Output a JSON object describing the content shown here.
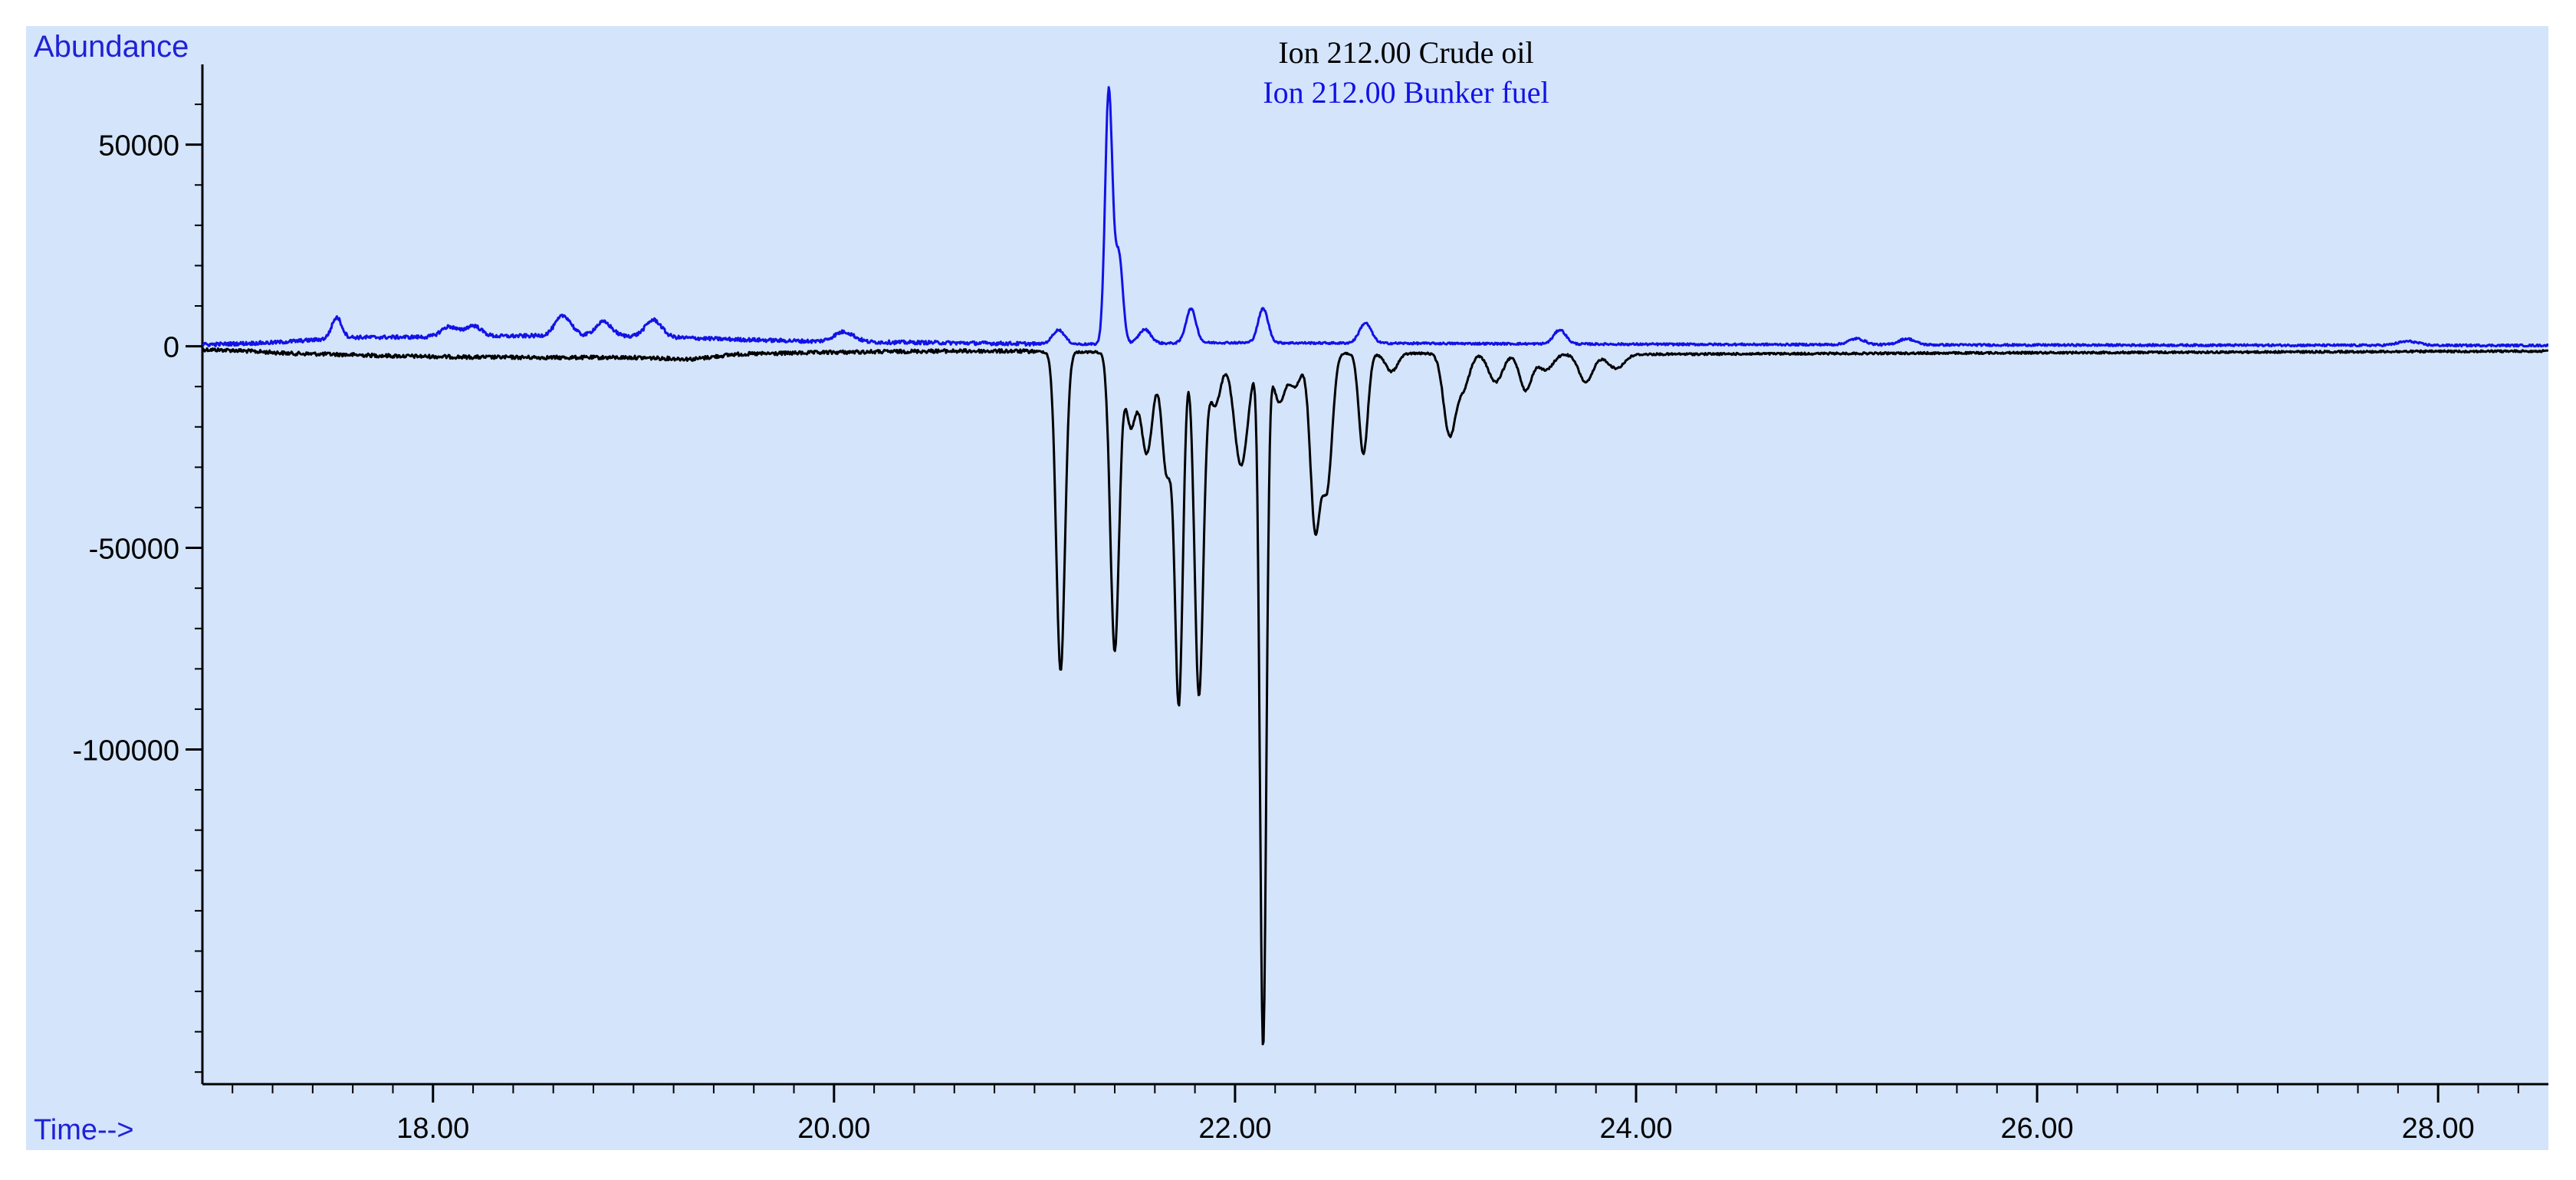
{
  "colors": {
    "background": "#d3e4fb",
    "axis": "#000000",
    "label_blue": "#1f22d6",
    "crude_line": "#000000",
    "bunker_line": "#1212e6"
  },
  "chart_data": {
    "type": "line",
    "title": "",
    "legend": [
      "Ion 212.00 Crude oil",
      "Ion 212.00 Bunker fuel"
    ],
    "legend_placement": "top-center",
    "ylabel": "Abundance",
    "xlabel": "Time-->",
    "xlim": [
      16.85,
      28.55
    ],
    "ylim": [
      -183000,
      68000
    ],
    "grid": false,
    "x_ticks": [
      18.0,
      20.0,
      22.0,
      24.0,
      26.0,
      28.0
    ],
    "x_tick_labels": [
      "18.00",
      "20.00",
      "22.00",
      "24.00",
      "26.00",
      "28.00"
    ],
    "y_ticks": [
      50000,
      0,
      -50000,
      -100000
    ],
    "y_tick_labels": [
      "50000",
      "0",
      "-50000",
      "-100000"
    ],
    "series": [
      {
        "name": "Ion 212.00 Crude oil",
        "baseline": -2000,
        "values": [
          [
            16.85,
            -800
          ],
          [
            17.0,
            -1000
          ],
          [
            17.3,
            -1800
          ],
          [
            17.5,
            -2000
          ],
          [
            17.8,
            -2400
          ],
          [
            18.2,
            -2700
          ],
          [
            18.6,
            -2800
          ],
          [
            19.0,
            -2800
          ],
          [
            19.3,
            -3200
          ],
          [
            19.5,
            -2000
          ],
          [
            20.0,
            -1500
          ],
          [
            20.5,
            -1200
          ],
          [
            20.9,
            -1200
          ],
          [
            21.1,
            -1400
          ]
        ],
        "peaks": [
          [
            21.13,
            -79000,
            0.022
          ],
          [
            21.4,
            -74000,
            0.022
          ],
          [
            21.48,
            -18000,
            0.025
          ],
          [
            21.56,
            -25000,
            0.03
          ],
          [
            21.66,
            -30000,
            0.025
          ],
          [
            21.72,
            -86000,
            0.02
          ],
          [
            21.82,
            -85000,
            0.022
          ],
          [
            21.9,
            -13000,
            0.03
          ],
          [
            22.03,
            -28000,
            0.035
          ],
          [
            22.14,
            -172000,
            0.016
          ],
          [
            22.22,
            -12000,
            0.03
          ],
          [
            22.3,
            -8000,
            0.03
          ],
          [
            22.4,
            -43000,
            0.025
          ],
          [
            22.46,
            -32000,
            0.025
          ],
          [
            22.64,
            -25000,
            0.022
          ],
          [
            22.78,
            -4500,
            0.03
          ],
          [
            23.07,
            -20000,
            0.03
          ],
          [
            23.14,
            -8000,
            0.03
          ],
          [
            23.3,
            -7000,
            0.035
          ],
          [
            23.45,
            -9000,
            0.03
          ],
          [
            23.55,
            -4000,
            0.035
          ],
          [
            23.75,
            -7000,
            0.035
          ],
          [
            23.9,
            -3500,
            0.04
          ]
        ],
        "tail": [
          [
            24.0,
            -2000
          ],
          [
            26.0,
            -1600
          ],
          [
            28.55,
            -1200
          ]
        ]
      },
      {
        "name": "Ion 212.00 Bunker fuel",
        "baseline": 1500,
        "values": [
          [
            16.85,
            400
          ],
          [
            17.2,
            900
          ],
          [
            17.6,
            2200
          ],
          [
            18.0,
            2300
          ],
          [
            18.5,
            2600
          ],
          [
            19.0,
            2500
          ],
          [
            19.5,
            1700
          ],
          [
            20.0,
            1100
          ],
          [
            20.5,
            900
          ],
          [
            21.0,
            600
          ],
          [
            21.3,
            500
          ]
        ],
        "peaks": [
          [
            17.52,
            5200,
            0.025
          ],
          [
            18.08,
            2500,
            0.04
          ],
          [
            18.2,
            2700,
            0.04
          ],
          [
            18.65,
            5000,
            0.04
          ],
          [
            18.85,
            3500,
            0.04
          ],
          [
            19.1,
            4200,
            0.04
          ],
          [
            20.05,
            2500,
            0.05
          ],
          [
            21.12,
            3500,
            0.03
          ],
          [
            21.37,
            62500,
            0.018
          ],
          [
            21.42,
            22000,
            0.02
          ],
          [
            21.55,
            3500,
            0.03
          ],
          [
            21.78,
            8500,
            0.025
          ],
          [
            22.14,
            8500,
            0.025
          ],
          [
            22.65,
            5000,
            0.03
          ],
          [
            23.62,
            3500,
            0.03
          ],
          [
            25.1,
            1500,
            0.04
          ],
          [
            25.35,
            1500,
            0.04
          ],
          [
            27.85,
            1000,
            0.05
          ]
        ],
        "tail": [
          [
            21.9,
            900
          ],
          [
            23.0,
            700
          ],
          [
            24.0,
            500
          ],
          [
            26.0,
            300
          ],
          [
            28.55,
            200
          ]
        ]
      }
    ]
  }
}
